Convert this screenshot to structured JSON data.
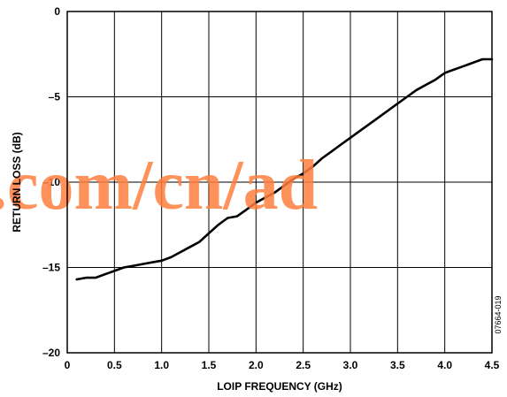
{
  "chart_data": {
    "type": "line",
    "title": "",
    "xlabel": "LOIP FREQUENCY (GHz)",
    "ylabel": "RETURN LOSS (dB)",
    "xlim": [
      0,
      4.5
    ],
    "ylim": [
      -20,
      0
    ],
    "x_ticks": [
      0,
      0.5,
      1.0,
      1.5,
      2.0,
      2.5,
      3.0,
      3.5,
      4.0,
      4.5
    ],
    "x_tick_labels": [
      "0",
      "0.5",
      "1.0",
      "1.5",
      "2.0",
      "2.5",
      "3.0",
      "3.5",
      "4.0",
      "4.5"
    ],
    "y_ticks": [
      0,
      -5,
      -10,
      -15,
      -20
    ],
    "y_tick_labels": [
      "0",
      "–5",
      "–10",
      "–15",
      "–20"
    ],
    "grid": true,
    "series": [
      {
        "color": "#000000",
        "x": [
          0.1,
          0.2,
          0.3,
          0.4,
          0.5,
          0.6,
          0.7,
          0.8,
          0.9,
          1.0,
          1.1,
          1.2,
          1.3,
          1.4,
          1.5,
          1.6,
          1.7,
          1.8,
          1.9,
          2.0,
          2.1,
          2.2,
          2.3,
          2.4,
          2.5,
          2.6,
          2.7,
          2.8,
          2.9,
          3.0,
          3.1,
          3.2,
          3.3,
          3.4,
          3.5,
          3.6,
          3.7,
          3.8,
          3.9,
          4.0,
          4.1,
          4.2,
          4.3,
          4.4,
          4.5
        ],
        "y": [
          -15.7,
          -15.6,
          -15.6,
          -15.4,
          -15.2,
          -15.0,
          -14.9,
          -14.8,
          -14.7,
          -14.6,
          -14.4,
          -14.1,
          -13.8,
          -13.5,
          -13.0,
          -12.5,
          -12.1,
          -12.0,
          -11.6,
          -11.2,
          -10.9,
          -10.6,
          -10.2,
          -9.8,
          -9.5,
          -9.1,
          -8.6,
          -8.2,
          -7.8,
          -7.4,
          -7.0,
          -6.6,
          -6.2,
          -5.8,
          -5.4,
          -5.0,
          -4.6,
          -4.3,
          -4.0,
          -3.6,
          -3.4,
          -3.2,
          -3.0,
          -2.8,
          -2.8
        ]
      }
    ],
    "watermark": ".com/cn/ad",
    "figure_id": "07664-019"
  }
}
